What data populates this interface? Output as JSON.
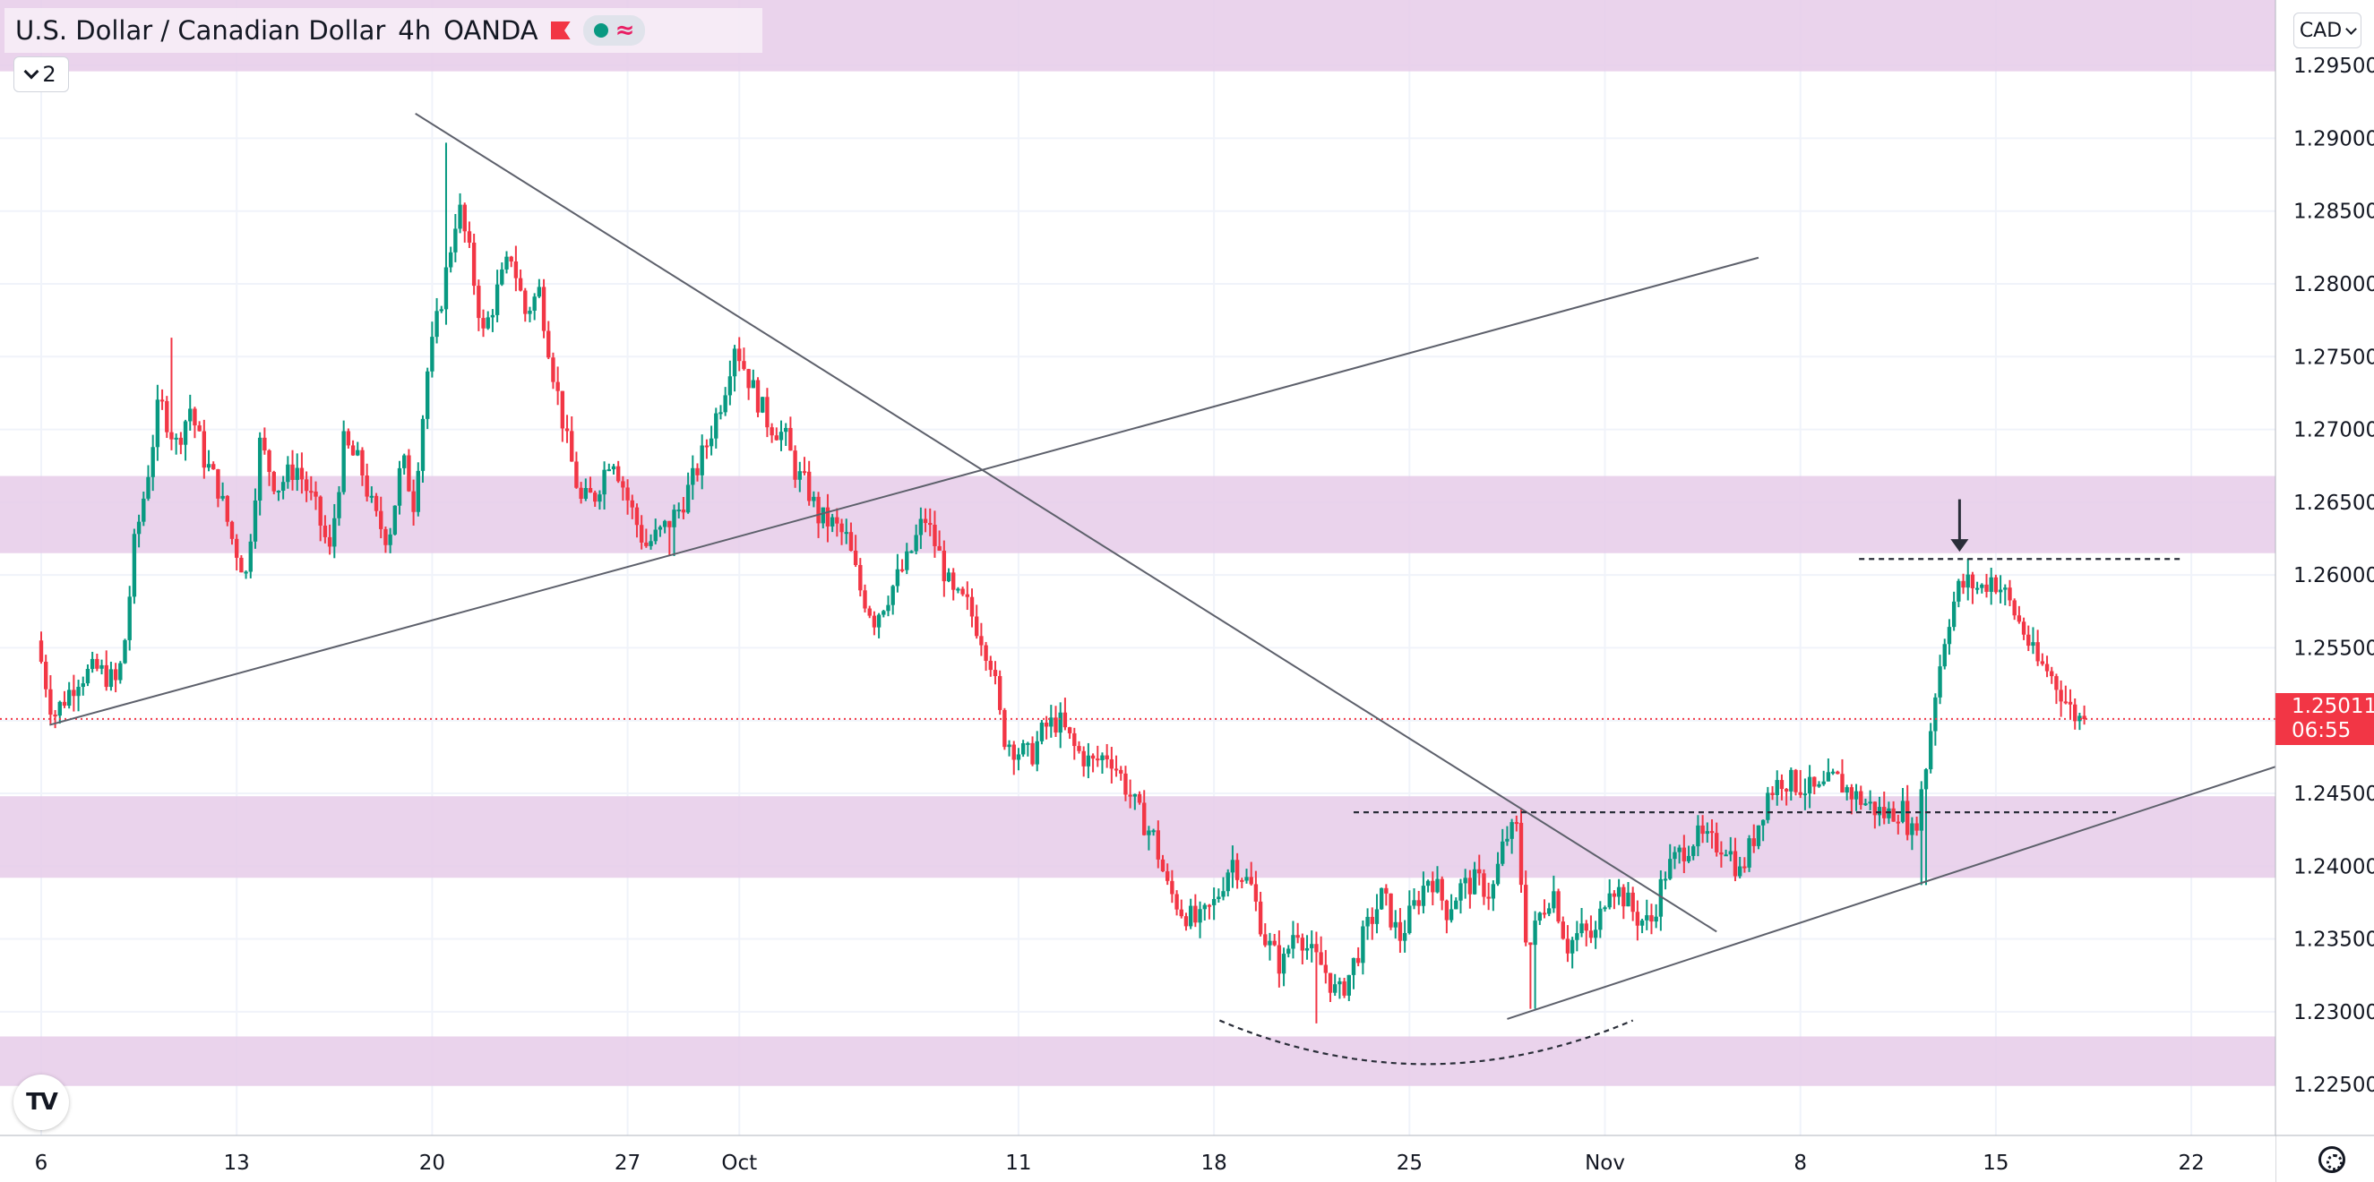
{
  "header": {
    "symbol": "U.S. Dollar / Canadian Dollar",
    "interval": "4h",
    "exchange": "OANDA",
    "flag_icon": "flag-icon",
    "status_icon": "market-open-dot-icon",
    "wave_icon": "wave-icon"
  },
  "indicator_toggle": {
    "count": "2"
  },
  "currency_button": {
    "label": "CAD"
  },
  "last_price": {
    "value": "1.25011",
    "countdown": "06:55"
  },
  "colors": {
    "up": "#089981",
    "down": "#f23645",
    "zone": "#e6cbe9",
    "line": "#5d606b"
  },
  "chart_data": {
    "type": "candlestick",
    "ylim": [
      1.2215,
      1.2995
    ],
    "yticks": [
      "1.29500",
      "1.29000",
      "1.28500",
      "1.28000",
      "1.27500",
      "1.27000",
      "1.26500",
      "1.26000",
      "1.25500",
      "1.25000",
      "1.24500",
      "1.24000",
      "1.23500",
      "1.23000",
      "1.22500"
    ],
    "yticks_values": [
      1.295,
      1.29,
      1.285,
      1.28,
      1.275,
      1.27,
      1.265,
      1.26,
      1.255,
      1.25,
      1.245,
      1.24,
      1.235,
      1.23,
      1.225
    ],
    "x_labels": [
      "6",
      "13",
      "20",
      "27",
      "Oct",
      "11",
      "18",
      "25",
      "Nov",
      "8",
      "15",
      "22"
    ],
    "x_label_days": [
      0,
      7,
      14,
      21,
      25,
      35,
      42,
      49,
      56,
      63,
      70,
      77
    ],
    "x_unit": "days since Sep 6",
    "support_resistance_zones": [
      [
        1.2946,
        1.2995
      ],
      [
        1.2615,
        1.2668
      ],
      [
        1.2392,
        1.2448
      ],
      [
        1.2249,
        1.2283
      ]
    ],
    "trendlines": [
      {
        "from": [
          13.4,
          1.2917
        ],
        "to": [
          60.0,
          1.2355
        ]
      },
      {
        "from": [
          0.3,
          1.2497
        ],
        "to": [
          61.5,
          1.2818
        ]
      },
      {
        "from": [
          52.5,
          1.2295
        ],
        "to": [
          80.6,
          1.2472
        ]
      }
    ],
    "dashed_levels": [
      {
        "x": [
          47.0,
          74.3
        ],
        "y": 1.2437
      },
      {
        "x": [
          65.1,
          76.7
        ],
        "y": 1.2611
      }
    ],
    "rounded_bottom": {
      "x": [
        42.2,
        57.0
      ],
      "y_ends": 1.2294,
      "y_min": 1.2264
    },
    "arrow": {
      "x": 68.7,
      "y_top": 1.2652,
      "y_tip": 1.2616
    },
    "last_price_line": 1.25011,
    "anchors": [
      [
        0,
        1.2555
      ],
      [
        0.6,
        1.2503
      ],
      [
        1.5,
        1.253
      ],
      [
        2.2,
        1.2535
      ],
      [
        2.9,
        1.2525
      ],
      [
        3.2,
        1.256
      ],
      [
        3.5,
        1.262
      ],
      [
        3.9,
        1.266
      ],
      [
        4.4,
        1.272
      ],
      [
        5.0,
        1.269
      ],
      [
        5.5,
        1.2715
      ],
      [
        6.0,
        1.268
      ],
      [
        6.5,
        1.266
      ],
      [
        7.0,
        1.2625
      ],
      [
        7.5,
        1.26
      ],
      [
        8.0,
        1.269
      ],
      [
        8.6,
        1.266
      ],
      [
        9.3,
        1.2675
      ],
      [
        10.0,
        1.2645
      ],
      [
        10.5,
        1.2615
      ],
      [
        11.0,
        1.269
      ],
      [
        11.6,
        1.2675
      ],
      [
        12.1,
        1.264
      ],
      [
        12.6,
        1.2625
      ],
      [
        13.1,
        1.268
      ],
      [
        13.5,
        1.265
      ],
      [
        14.0,
        1.274
      ],
      [
        14.6,
        1.28
      ],
      [
        15.1,
        1.2855
      ],
      [
        15.5,
        1.282
      ],
      [
        16.0,
        1.2765
      ],
      [
        16.5,
        1.2795
      ],
      [
        17.0,
        1.282
      ],
      [
        17.5,
        1.278
      ],
      [
        18.0,
        1.2795
      ],
      [
        18.5,
        1.274
      ],
      [
        19.0,
        1.269
      ],
      [
        19.5,
        1.265
      ],
      [
        20.0,
        1.2655
      ],
      [
        20.6,
        1.2685
      ],
      [
        21.2,
        1.265
      ],
      [
        21.8,
        1.262
      ],
      [
        22.4,
        1.263
      ],
      [
        23.0,
        1.2645
      ],
      [
        23.5,
        1.2665
      ],
      [
        24.0,
        1.269
      ],
      [
        24.6,
        1.2725
      ],
      [
        25.0,
        1.276
      ],
      [
        25.6,
        1.273
      ],
      [
        26.2,
        1.2705
      ],
      [
        26.8,
        1.2695
      ],
      [
        27.2,
        1.267
      ],
      [
        27.6,
        1.266
      ],
      [
        28.0,
        1.264
      ],
      [
        28.5,
        1.2635
      ],
      [
        29.0,
        1.2625
      ],
      [
        29.5,
        1.259
      ],
      [
        30.0,
        1.257
      ],
      [
        30.6,
        1.259
      ],
      [
        31.2,
        1.261
      ],
      [
        31.8,
        1.264
      ],
      [
        32.3,
        1.2615
      ],
      [
        32.8,
        1.2585
      ],
      [
        33.3,
        1.258
      ],
      [
        33.8,
        1.256
      ],
      [
        34.2,
        1.254
      ],
      [
        34.6,
        1.249
      ],
      [
        35.1,
        1.248
      ],
      [
        35.6,
        1.2475
      ],
      [
        36.1,
        1.2495
      ],
      [
        36.6,
        1.25
      ],
      [
        37.2,
        1.248
      ],
      [
        37.8,
        1.247
      ],
      [
        38.4,
        1.2478
      ],
      [
        39.0,
        1.2455
      ],
      [
        39.5,
        1.2435
      ],
      [
        40.0,
        1.242
      ],
      [
        40.5,
        1.2385
      ],
      [
        41.0,
        1.237
      ],
      [
        41.6,
        1.236
      ],
      [
        42.2,
        1.2375
      ],
      [
        42.8,
        1.2405
      ],
      [
        43.5,
        1.2385
      ],
      [
        44.0,
        1.235
      ],
      [
        44.6,
        1.233
      ],
      [
        45.1,
        1.236
      ],
      [
        45.6,
        1.234
      ],
      [
        46.1,
        1.233
      ],
      [
        46.6,
        1.231
      ],
      [
        47.0,
        1.2325
      ],
      [
        47.6,
        1.2355
      ],
      [
        48.2,
        1.238
      ],
      [
        48.8,
        1.235
      ],
      [
        49.4,
        1.2375
      ],
      [
        49.9,
        1.2395
      ],
      [
        50.5,
        1.237
      ],
      [
        51.0,
        1.2385
      ],
      [
        51.6,
        1.239
      ],
      [
        52.1,
        1.238
      ],
      [
        52.6,
        1.242
      ],
      [
        53.0,
        1.2425
      ],
      [
        53.4,
        1.234
      ],
      [
        53.8,
        1.2365
      ],
      [
        54.3,
        1.2385
      ],
      [
        54.8,
        1.2345
      ],
      [
        55.3,
        1.2355
      ],
      [
        55.8,
        1.235
      ],
      [
        56.3,
        1.239
      ],
      [
        56.8,
        1.238
      ],
      [
        57.3,
        1.2365
      ],
      [
        57.8,
        1.236
      ],
      [
        58.3,
        1.2395
      ],
      [
        58.9,
        1.241
      ],
      [
        59.4,
        1.242
      ],
      [
        60.0,
        1.2415
      ],
      [
        60.5,
        1.2415
      ],
      [
        61.0,
        1.2395
      ],
      [
        61.5,
        1.242
      ],
      [
        62.0,
        1.245
      ],
      [
        62.5,
        1.246
      ],
      [
        63.2,
        1.2455
      ],
      [
        63.8,
        1.245
      ],
      [
        64.4,
        1.246
      ],
      [
        65.0,
        1.245
      ],
      [
        65.6,
        1.2442
      ],
      [
        66.2,
        1.2435
      ],
      [
        66.8,
        1.244
      ],
      [
        67.2,
        1.242
      ],
      [
        67.6,
        1.246
      ],
      [
        68.0,
        1.252
      ],
      [
        68.4,
        1.2565
      ],
      [
        68.8,
        1.259
      ],
      [
        69.2,
        1.2595
      ],
      [
        69.6,
        1.259
      ],
      [
        70.0,
        1.2598
      ],
      [
        70.4,
        1.259
      ],
      [
        70.8,
        1.2575
      ],
      [
        71.2,
        1.256
      ],
      [
        71.6,
        1.254
      ],
      [
        72.0,
        1.2535
      ],
      [
        72.5,
        1.252
      ],
      [
        72.9,
        1.2505
      ],
      [
        73.2,
        1.2501
      ]
    ],
    "spikes": [
      {
        "x": 4.7,
        "high": 1.2763
      },
      {
        "x": 14.5,
        "high": 1.2897
      },
      {
        "x": 22.6,
        "low": 1.2613
      },
      {
        "x": 39.3,
        "low": 1.2447
      },
      {
        "x": 45.7,
        "low": 1.2292
      },
      {
        "x": 53.4,
        "low": 1.2302
      },
      {
        "x": 63.0,
        "high": 1.2466
      },
      {
        "x": 67.4,
        "low": 1.2387
      },
      {
        "x": 67.9,
        "high": 1.251
      },
      {
        "x": 69.8,
        "high": 1.2605
      }
    ]
  }
}
